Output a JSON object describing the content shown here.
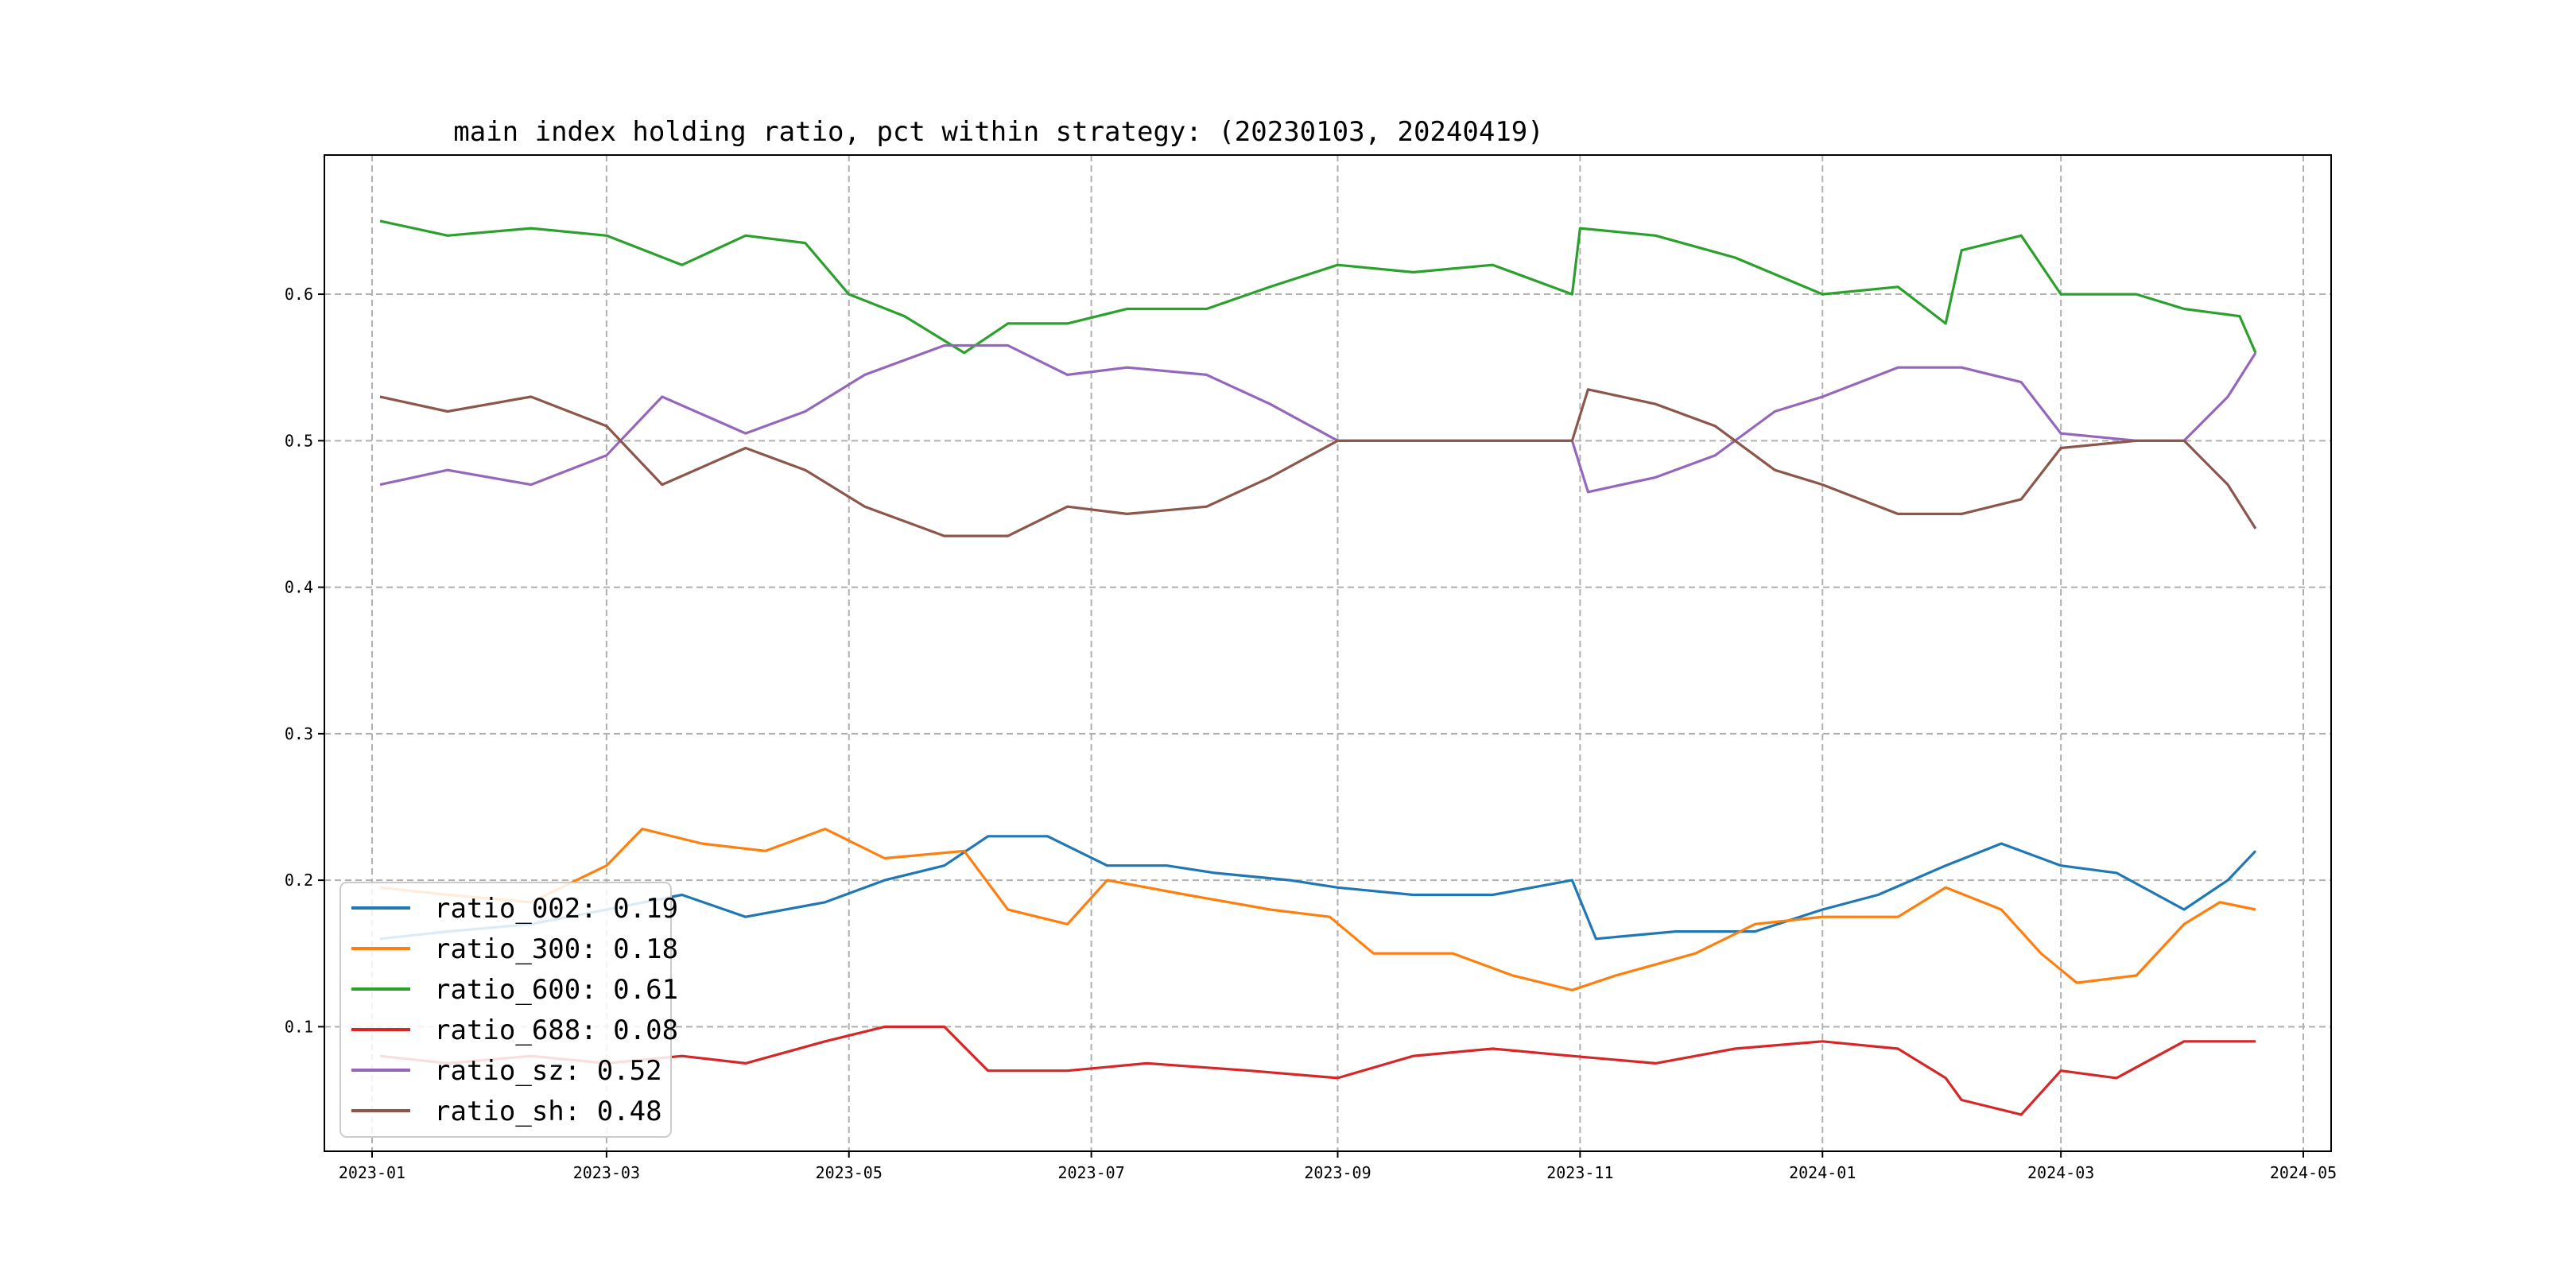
{
  "chart_data": {
    "type": "line",
    "title": "main index holding ratio, pct within strategy: (20230103, 20240419)",
    "xlabel": "",
    "ylabel": "",
    "x_range": [
      "2022-12-20",
      "2024-05-08"
    ],
    "ylim": [
      0.015,
      0.695
    ],
    "grid": true,
    "legend_position": "lower-left",
    "x_ticks": [
      "2023-01",
      "2023-03",
      "2023-05",
      "2023-07",
      "2023-09",
      "2023-11",
      "2024-01",
      "2024-03",
      "2024-05"
    ],
    "x_tick_dates": [
      "2023-01-01",
      "2023-03-01",
      "2023-05-01",
      "2023-07-01",
      "2023-09-01",
      "2023-11-01",
      "2024-01-01",
      "2024-03-01",
      "2024-05-01"
    ],
    "y_ticks": [
      "0.1",
      "0.2",
      "0.3",
      "0.4",
      "0.5",
      "0.6"
    ],
    "y_tick_values": [
      0.1,
      0.2,
      0.3,
      0.4,
      0.5,
      0.6
    ],
    "series": [
      {
        "name": "ratio_002",
        "legend_label": "ratio_002: 0.19",
        "color": "#1f77b4",
        "points": [
          [
            "2023-01-03",
            0.16
          ],
          [
            "2023-01-20",
            0.165
          ],
          [
            "2023-02-10",
            0.17
          ],
          [
            "2023-03-01",
            0.18
          ],
          [
            "2023-03-20",
            0.19
          ],
          [
            "2023-04-05",
            0.175
          ],
          [
            "2023-04-25",
            0.185
          ],
          [
            "2023-05-10",
            0.2
          ],
          [
            "2023-05-25",
            0.21
          ],
          [
            "2023-06-05",
            0.23
          ],
          [
            "2023-06-20",
            0.23
          ],
          [
            "2023-07-05",
            0.21
          ],
          [
            "2023-07-20",
            0.21
          ],
          [
            "2023-08-01",
            0.205
          ],
          [
            "2023-08-20",
            0.2
          ],
          [
            "2023-09-01",
            0.195
          ],
          [
            "2023-09-20",
            0.19
          ],
          [
            "2023-10-10",
            0.19
          ],
          [
            "2023-10-30",
            0.2
          ],
          [
            "2023-11-05",
            0.16
          ],
          [
            "2023-11-25",
            0.165
          ],
          [
            "2023-12-15",
            0.165
          ],
          [
            "2024-01-01",
            0.18
          ],
          [
            "2024-01-15",
            0.19
          ],
          [
            "2024-02-01",
            0.21
          ],
          [
            "2024-02-15",
            0.225
          ],
          [
            "2024-03-01",
            0.21
          ],
          [
            "2024-03-15",
            0.205
          ],
          [
            "2024-04-01",
            0.18
          ],
          [
            "2024-04-12",
            0.2
          ],
          [
            "2024-04-19",
            0.22
          ]
        ]
      },
      {
        "name": "ratio_300",
        "legend_label": "ratio_300: 0.18",
        "color": "#ff7f0e",
        "points": [
          [
            "2023-01-03",
            0.195
          ],
          [
            "2023-01-20",
            0.19
          ],
          [
            "2023-02-10",
            0.185
          ],
          [
            "2023-03-01",
            0.21
          ],
          [
            "2023-03-10",
            0.235
          ],
          [
            "2023-03-25",
            0.225
          ],
          [
            "2023-04-10",
            0.22
          ],
          [
            "2023-04-25",
            0.235
          ],
          [
            "2023-05-10",
            0.215
          ],
          [
            "2023-05-30",
            0.22
          ],
          [
            "2023-06-10",
            0.18
          ],
          [
            "2023-06-25",
            0.17
          ],
          [
            "2023-07-05",
            0.2
          ],
          [
            "2023-07-25",
            0.19
          ],
          [
            "2023-08-15",
            0.18
          ],
          [
            "2023-08-30",
            0.175
          ],
          [
            "2023-09-10",
            0.15
          ],
          [
            "2023-09-30",
            0.15
          ],
          [
            "2023-10-15",
            0.135
          ],
          [
            "2023-10-30",
            0.125
          ],
          [
            "2023-11-10",
            0.135
          ],
          [
            "2023-11-30",
            0.15
          ],
          [
            "2023-12-15",
            0.17
          ],
          [
            "2024-01-01",
            0.175
          ],
          [
            "2024-01-20",
            0.175
          ],
          [
            "2024-02-01",
            0.195
          ],
          [
            "2024-02-15",
            0.18
          ],
          [
            "2024-02-25",
            0.15
          ],
          [
            "2024-03-05",
            0.13
          ],
          [
            "2024-03-20",
            0.135
          ],
          [
            "2024-04-01",
            0.17
          ],
          [
            "2024-04-10",
            0.185
          ],
          [
            "2024-04-19",
            0.18
          ]
        ]
      },
      {
        "name": "ratio_600",
        "legend_label": "ratio_600: 0.61",
        "color": "#2ca02c",
        "points": [
          [
            "2023-01-03",
            0.65
          ],
          [
            "2023-01-20",
            0.64
          ],
          [
            "2023-02-10",
            0.645
          ],
          [
            "2023-03-01",
            0.64
          ],
          [
            "2023-03-20",
            0.62
          ],
          [
            "2023-04-05",
            0.64
          ],
          [
            "2023-04-20",
            0.635
          ],
          [
            "2023-05-01",
            0.6
          ],
          [
            "2023-05-15",
            0.585
          ],
          [
            "2023-05-30",
            0.56
          ],
          [
            "2023-06-10",
            0.58
          ],
          [
            "2023-06-25",
            0.58
          ],
          [
            "2023-07-10",
            0.59
          ],
          [
            "2023-07-30",
            0.59
          ],
          [
            "2023-08-15",
            0.605
          ],
          [
            "2023-09-01",
            0.62
          ],
          [
            "2023-09-20",
            0.615
          ],
          [
            "2023-10-10",
            0.62
          ],
          [
            "2023-10-30",
            0.6
          ],
          [
            "2023-11-01",
            0.645
          ],
          [
            "2023-11-20",
            0.64
          ],
          [
            "2023-12-10",
            0.625
          ],
          [
            "2024-01-01",
            0.6
          ],
          [
            "2024-01-20",
            0.605
          ],
          [
            "2024-02-01",
            0.58
          ],
          [
            "2024-02-05",
            0.63
          ],
          [
            "2024-02-20",
            0.64
          ],
          [
            "2024-03-01",
            0.6
          ],
          [
            "2024-03-20",
            0.6
          ],
          [
            "2024-04-01",
            0.59
          ],
          [
            "2024-04-15",
            0.585
          ],
          [
            "2024-04-19",
            0.56
          ]
        ]
      },
      {
        "name": "ratio_688",
        "legend_label": "ratio_688: 0.08",
        "color": "#d62728",
        "points": [
          [
            "2023-01-03",
            0.08
          ],
          [
            "2023-01-20",
            0.075
          ],
          [
            "2023-02-10",
            0.08
          ],
          [
            "2023-03-01",
            0.075
          ],
          [
            "2023-03-20",
            0.08
          ],
          [
            "2023-04-05",
            0.075
          ],
          [
            "2023-04-25",
            0.09
          ],
          [
            "2023-05-10",
            0.1
          ],
          [
            "2023-05-25",
            0.1
          ],
          [
            "2023-06-05",
            0.07
          ],
          [
            "2023-06-25",
            0.07
          ],
          [
            "2023-07-15",
            0.075
          ],
          [
            "2023-08-10",
            0.07
          ],
          [
            "2023-09-01",
            0.065
          ],
          [
            "2023-09-20",
            0.08
          ],
          [
            "2023-10-10",
            0.085
          ],
          [
            "2023-10-30",
            0.08
          ],
          [
            "2023-11-20",
            0.075
          ],
          [
            "2023-12-10",
            0.085
          ],
          [
            "2024-01-01",
            0.09
          ],
          [
            "2024-01-20",
            0.085
          ],
          [
            "2024-02-01",
            0.065
          ],
          [
            "2024-02-05",
            0.05
          ],
          [
            "2024-02-20",
            0.04
          ],
          [
            "2024-03-01",
            0.07
          ],
          [
            "2024-03-15",
            0.065
          ],
          [
            "2024-04-01",
            0.09
          ],
          [
            "2024-04-19",
            0.09
          ]
        ]
      },
      {
        "name": "ratio_sz",
        "legend_label": "ratio_sz: 0.52",
        "color": "#9467bd",
        "points": [
          [
            "2023-01-03",
            0.47
          ],
          [
            "2023-01-20",
            0.48
          ],
          [
            "2023-02-10",
            0.47
          ],
          [
            "2023-03-01",
            0.49
          ],
          [
            "2023-03-15",
            0.53
          ],
          [
            "2023-04-05",
            0.505
          ],
          [
            "2023-04-20",
            0.52
          ],
          [
            "2023-05-05",
            0.545
          ],
          [
            "2023-05-25",
            0.565
          ],
          [
            "2023-06-10",
            0.565
          ],
          [
            "2023-06-25",
            0.545
          ],
          [
            "2023-07-10",
            0.55
          ],
          [
            "2023-07-30",
            0.545
          ],
          [
            "2023-08-15",
            0.525
          ],
          [
            "2023-09-01",
            0.5
          ],
          [
            "2023-09-20",
            0.5
          ],
          [
            "2023-10-10",
            0.5
          ],
          [
            "2023-10-30",
            0.5
          ],
          [
            "2023-11-03",
            0.465
          ],
          [
            "2023-11-20",
            0.475
          ],
          [
            "2023-12-05",
            0.49
          ],
          [
            "2023-12-20",
            0.52
          ],
          [
            "2024-01-01",
            0.53
          ],
          [
            "2024-01-20",
            0.55
          ],
          [
            "2024-02-05",
            0.55
          ],
          [
            "2024-02-20",
            0.54
          ],
          [
            "2024-03-01",
            0.505
          ],
          [
            "2024-03-20",
            0.5
          ],
          [
            "2024-04-01",
            0.5
          ],
          [
            "2024-04-12",
            0.53
          ],
          [
            "2024-04-19",
            0.56
          ]
        ]
      },
      {
        "name": "ratio_sh",
        "legend_label": "ratio_sh: 0.48",
        "color": "#8c564b",
        "points": [
          [
            "2023-01-03",
            0.53
          ],
          [
            "2023-01-20",
            0.52
          ],
          [
            "2023-02-10",
            0.53
          ],
          [
            "2023-03-01",
            0.51
          ],
          [
            "2023-03-15",
            0.47
          ],
          [
            "2023-04-05",
            0.495
          ],
          [
            "2023-04-20",
            0.48
          ],
          [
            "2023-05-05",
            0.455
          ],
          [
            "2023-05-25",
            0.435
          ],
          [
            "2023-06-10",
            0.435
          ],
          [
            "2023-06-25",
            0.455
          ],
          [
            "2023-07-10",
            0.45
          ],
          [
            "2023-07-30",
            0.455
          ],
          [
            "2023-08-15",
            0.475
          ],
          [
            "2023-09-01",
            0.5
          ],
          [
            "2023-09-20",
            0.5
          ],
          [
            "2023-10-10",
            0.5
          ],
          [
            "2023-10-30",
            0.5
          ],
          [
            "2023-11-03",
            0.535
          ],
          [
            "2023-11-20",
            0.525
          ],
          [
            "2023-12-05",
            0.51
          ],
          [
            "2023-12-20",
            0.48
          ],
          [
            "2024-01-01",
            0.47
          ],
          [
            "2024-01-20",
            0.45
          ],
          [
            "2024-02-05",
            0.45
          ],
          [
            "2024-02-20",
            0.46
          ],
          [
            "2024-03-01",
            0.495
          ],
          [
            "2024-03-20",
            0.5
          ],
          [
            "2024-04-01",
            0.5
          ],
          [
            "2024-04-12",
            0.47
          ],
          [
            "2024-04-19",
            0.44
          ]
        ]
      }
    ]
  }
}
